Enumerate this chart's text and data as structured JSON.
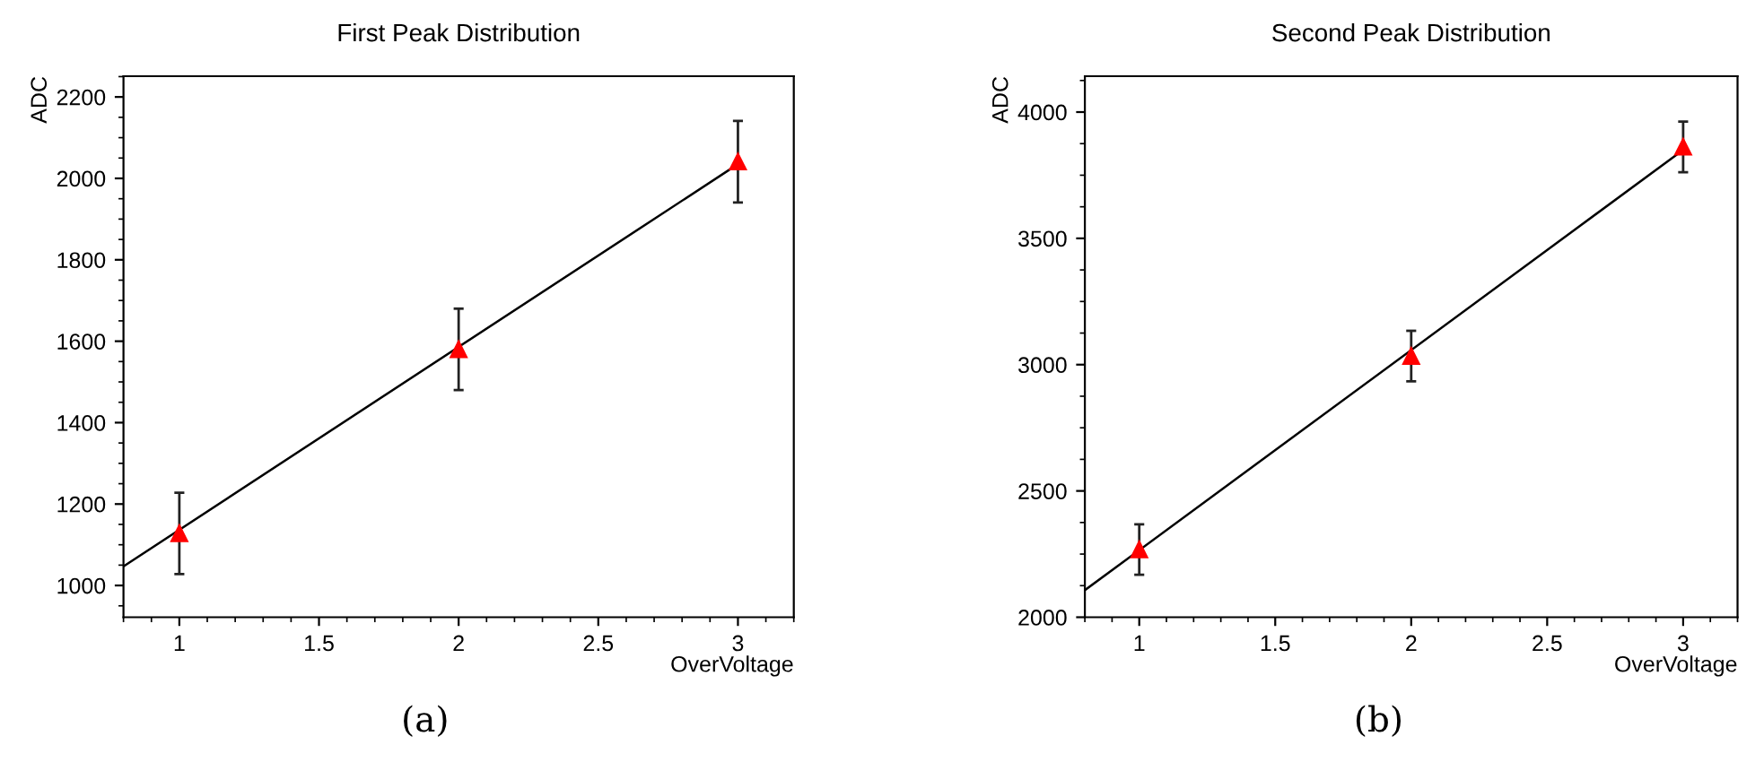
{
  "chart_data": [
    {
      "type": "scatter",
      "title": "First Peak Distribution",
      "xlabel": "OverVoltage",
      "ylabel": "ADC",
      "annotations": [
        "(a)"
      ],
      "xlim": [
        0.8,
        3.2
      ],
      "xticks": [
        1,
        1.5,
        2,
        2.5,
        3
      ],
      "ylim": [
        922,
        2251
      ],
      "yticks": [
        1000,
        1200,
        1400,
        1600,
        1800,
        2000,
        2200
      ],
      "grid": false,
      "legend": false,
      "series": [
        {
          "color": "#ff0000",
          "marker": "triangle",
          "x": [
            1,
            2,
            3
          ],
          "values": [
            1128,
            1580,
            2041
          ],
          "errors": [
            100,
            100,
            100
          ]
        },
        {
          "type": "line",
          "marker": "none",
          "color": "#000000",
          "x": [
            0.8,
            3
          ],
          "values": [
            1047,
            2035
          ]
        }
      ]
    },
    {
      "type": "scatter",
      "title": "Second Peak Distribution",
      "xlabel": "OverVoltage",
      "ylabel": "ADC",
      "annotations": [
        "(b)"
      ],
      "xlim": [
        0.8,
        3.2
      ],
      "xticks": [
        1,
        1.5,
        2,
        2.5,
        3
      ],
      "ylim": [
        2000,
        4142
      ],
      "yticks": [
        2000,
        2500,
        3000,
        3500,
        4000
      ],
      "grid": false,
      "legend": false,
      "series": [
        {
          "color": "#ff0000",
          "marker": "triangle",
          "x": [
            1,
            2,
            3
          ],
          "values": [
            2268,
            3034,
            3862
          ],
          "errors": [
            100,
            100,
            100
          ]
        },
        {
          "type": "line",
          "marker": "none",
          "color": "#000000",
          "x": [
            0.8,
            3
          ],
          "values": [
            2107,
            3850
          ]
        }
      ]
    }
  ]
}
